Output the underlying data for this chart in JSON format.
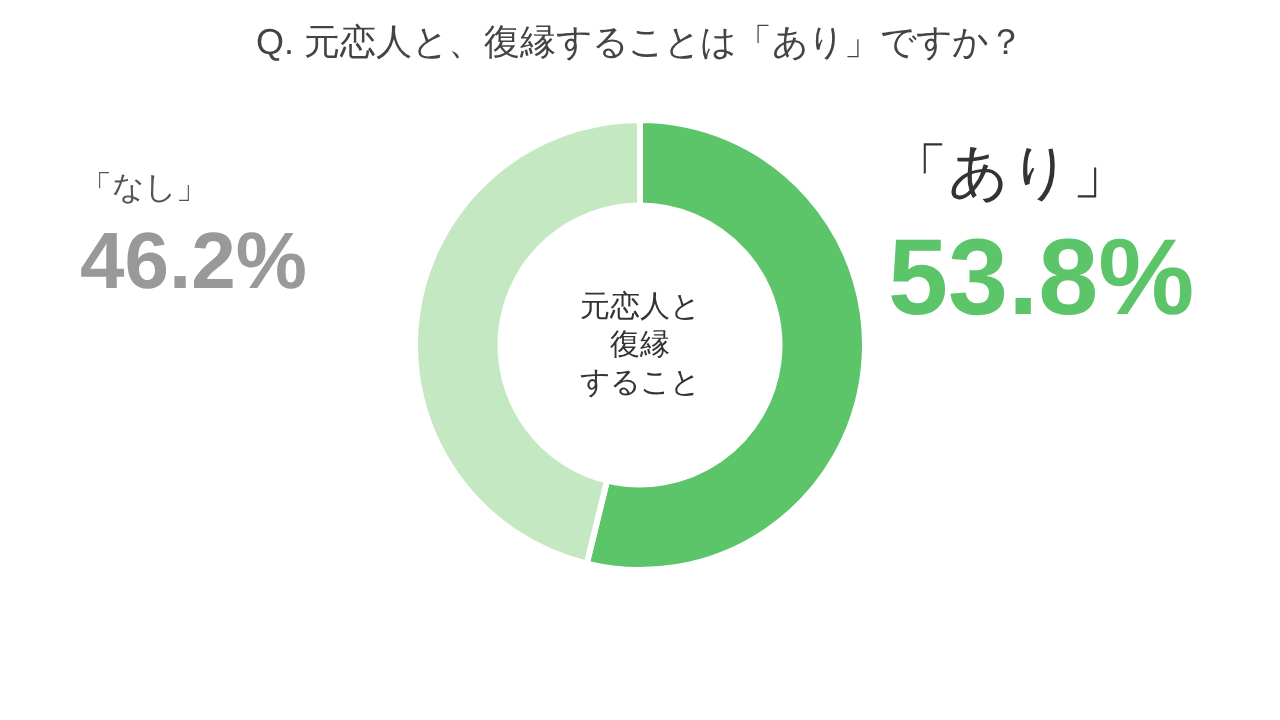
{
  "chart_data": {
    "type": "donut",
    "title": "Q. 元恋人と、復縁することは「あり」ですか？",
    "categories": [
      "「あり」",
      "「なし」"
    ],
    "values": [
      53.8,
      46.2
    ],
    "value_labels": [
      "53.8%",
      "46.2%"
    ],
    "colors": [
      "#5cc469",
      "#c4e8c1"
    ],
    "annotations": [
      "元恋人と",
      "復縁",
      "すること"
    ],
    "legend": false
  }
}
